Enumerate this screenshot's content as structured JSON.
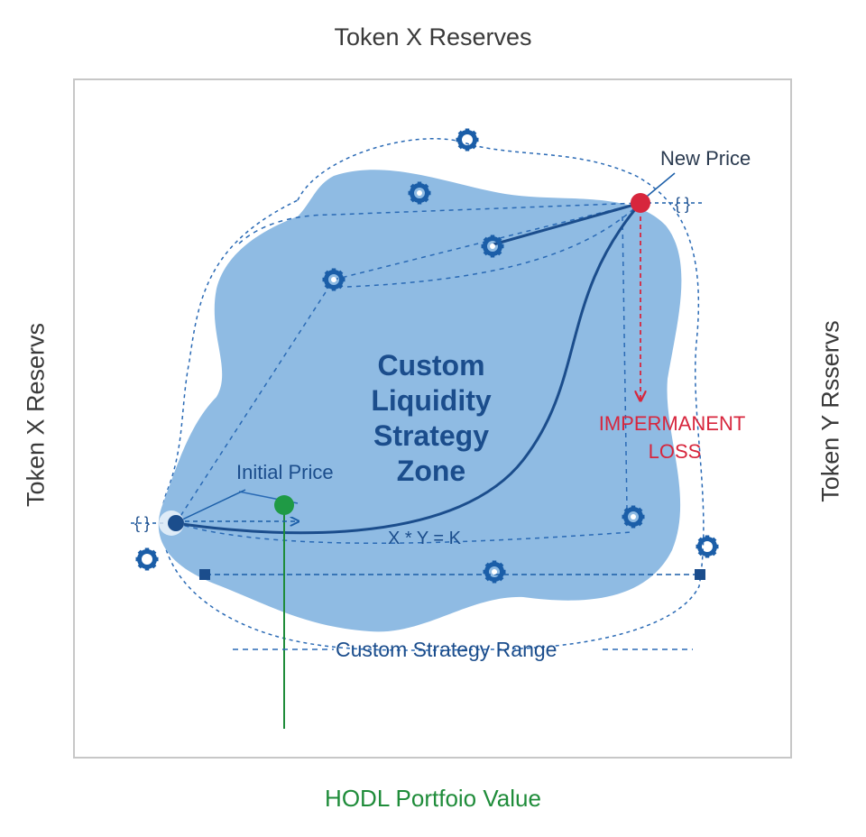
{
  "labels": {
    "top": "Token X Reserves",
    "left": "Token  X Reservs",
    "right": "Token Y Rsservs",
    "bottom": "HODL Portfoio Value"
  },
  "diagram": {
    "zone_title_lines": [
      "Custom",
      "Liquidity",
      "Strategy",
      "Zone"
    ],
    "new_price": "New Price",
    "initial_price": "Initial Price",
    "impermanent_loss_lines": [
      "IMPERMANENT",
      "LOSS"
    ],
    "equation": "X * Y = K",
    "range_label": "Custom Strategy Range",
    "brace_left": "{ }",
    "brace_right": "{ }"
  },
  "colors": {
    "zone_fill": "#8fbbe3",
    "curve": "#1b4d8c",
    "new_price_dot": "#d7263d",
    "initial_price_dot": "#1f9a45",
    "impermanent_loss": "#d7263d",
    "hodl_line": "#1f8c3a",
    "frame": "#c7c7c7"
  },
  "icons": [
    "gear-icon",
    "gear-icon",
    "gear-icon",
    "gear-icon",
    "gear-icon",
    "gear-icon",
    "gear-icon",
    "gear-icon"
  ]
}
